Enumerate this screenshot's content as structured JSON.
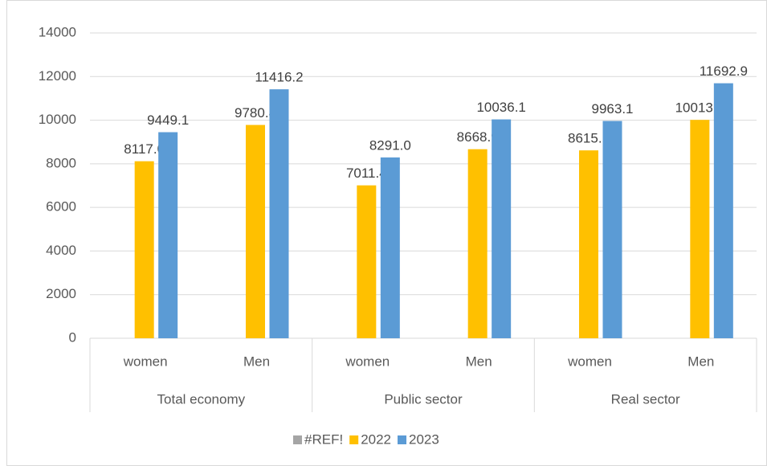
{
  "chart_data": {
    "type": "bar",
    "groups": [
      {
        "name": "Total economy",
        "categories": [
          "women",
          "Men"
        ]
      },
      {
        "name": "Public sector",
        "categories": [
          "women",
          "Men"
        ]
      },
      {
        "name": "Real sector",
        "categories": [
          "women",
          "Men"
        ]
      }
    ],
    "series": [
      {
        "name": "#REF!",
        "color": "#a5a5a5",
        "values": [
          null,
          null,
          null,
          null,
          null,
          null
        ]
      },
      {
        "name": "2022",
        "color": "#ffc000",
        "values": [
          8117,
          9780.8,
          7011.4,
          8668.9,
          8615.1,
          10013.4
        ],
        "value_labels": [
          "8117.0",
          "9780.8",
          "7011.4",
          "8668.9",
          "8615.1",
          "10013.4"
        ]
      },
      {
        "name": "2023",
        "color": "#5b9bd5",
        "values": [
          9449.1,
          11416.2,
          8291,
          10036.1,
          9963.1,
          11692.9
        ],
        "value_labels": [
          "9449.1",
          "11416.2",
          "8291.0",
          "10036.1",
          "9963.1",
          "11692.9"
        ]
      }
    ],
    "ylim": [
      0,
      14000
    ],
    "yticks": [
      0,
      2000,
      4000,
      6000,
      8000,
      10000,
      12000,
      14000
    ],
    "grid": true,
    "legend": "bottom"
  }
}
